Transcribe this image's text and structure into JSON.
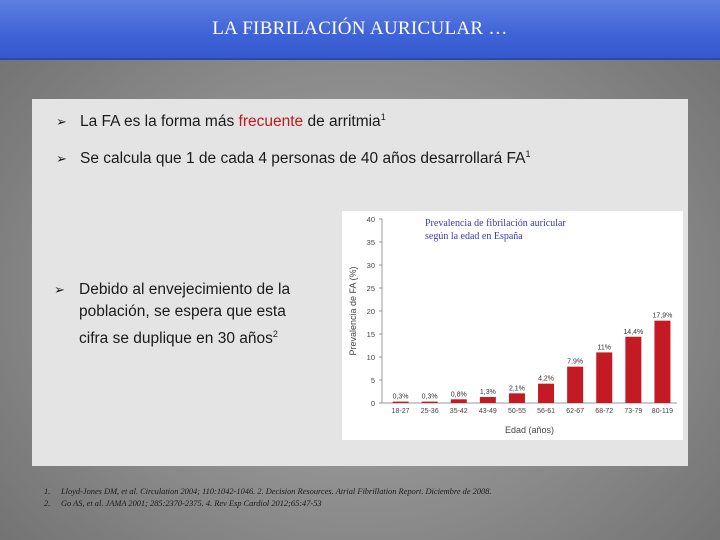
{
  "title": "LA FIBRILACIÓN AURICULAR …",
  "bullets": {
    "b1": {
      "pre": "La FA es la forma más ",
      "highlight": "frecuente",
      "post": " de arritmia",
      "sup": "1"
    },
    "b2": {
      "text": "Se calcula que 1 de cada 4 personas de 40 años desarrollará FA",
      "sup": "1"
    },
    "b3": {
      "line1": "Debido al envejecimiento de la",
      "line2": "población, se espera que esta",
      "line3": "cifra se duplique en 30 años",
      "sup": "2"
    }
  },
  "chart_title": {
    "line1": "Prevalencia de fibrilación auricular",
    "line2": "según la edad en España"
  },
  "chart_data": {
    "type": "bar",
    "categories": [
      "18-27",
      "25-36",
      "35-42",
      "43-49",
      "50-55",
      "56-61",
      "62-67",
      "68-72",
      "73-79",
      "80-119"
    ],
    "values": [
      0.3,
      0.3,
      0.8,
      1.3,
      2.1,
      4.2,
      7.9,
      11,
      14.4,
      17.9
    ],
    "value_labels": [
      "0,3%",
      "0,3%",
      "0,8%",
      "1,3%",
      "2,1%",
      "4,2%",
      "7,9%",
      "11%",
      "14,4%",
      "17,9%"
    ],
    "xlabel": "Edad (años)",
    "ylabel": "Prevalencia de FA (%)",
    "ylim": [
      0,
      40
    ],
    "yticks": [
      0,
      5,
      10,
      15,
      20,
      25,
      30,
      35,
      40
    ],
    "bar_color": "#c41a24",
    "grid": false
  },
  "references": [
    {
      "n": "1.",
      "text": "Lloyd-Jones DM, et al. Circulation 2004; 110:1042-1046. 2. Decision Resources. Atrial Fibrillation Report. Diciembre de 2008."
    },
    {
      "n": "2.",
      "text": "Go AS, et al. JAMA 2001; 285:2370-2375. 4. Rev Esp Cardiol 2012;65:47-53"
    }
  ]
}
